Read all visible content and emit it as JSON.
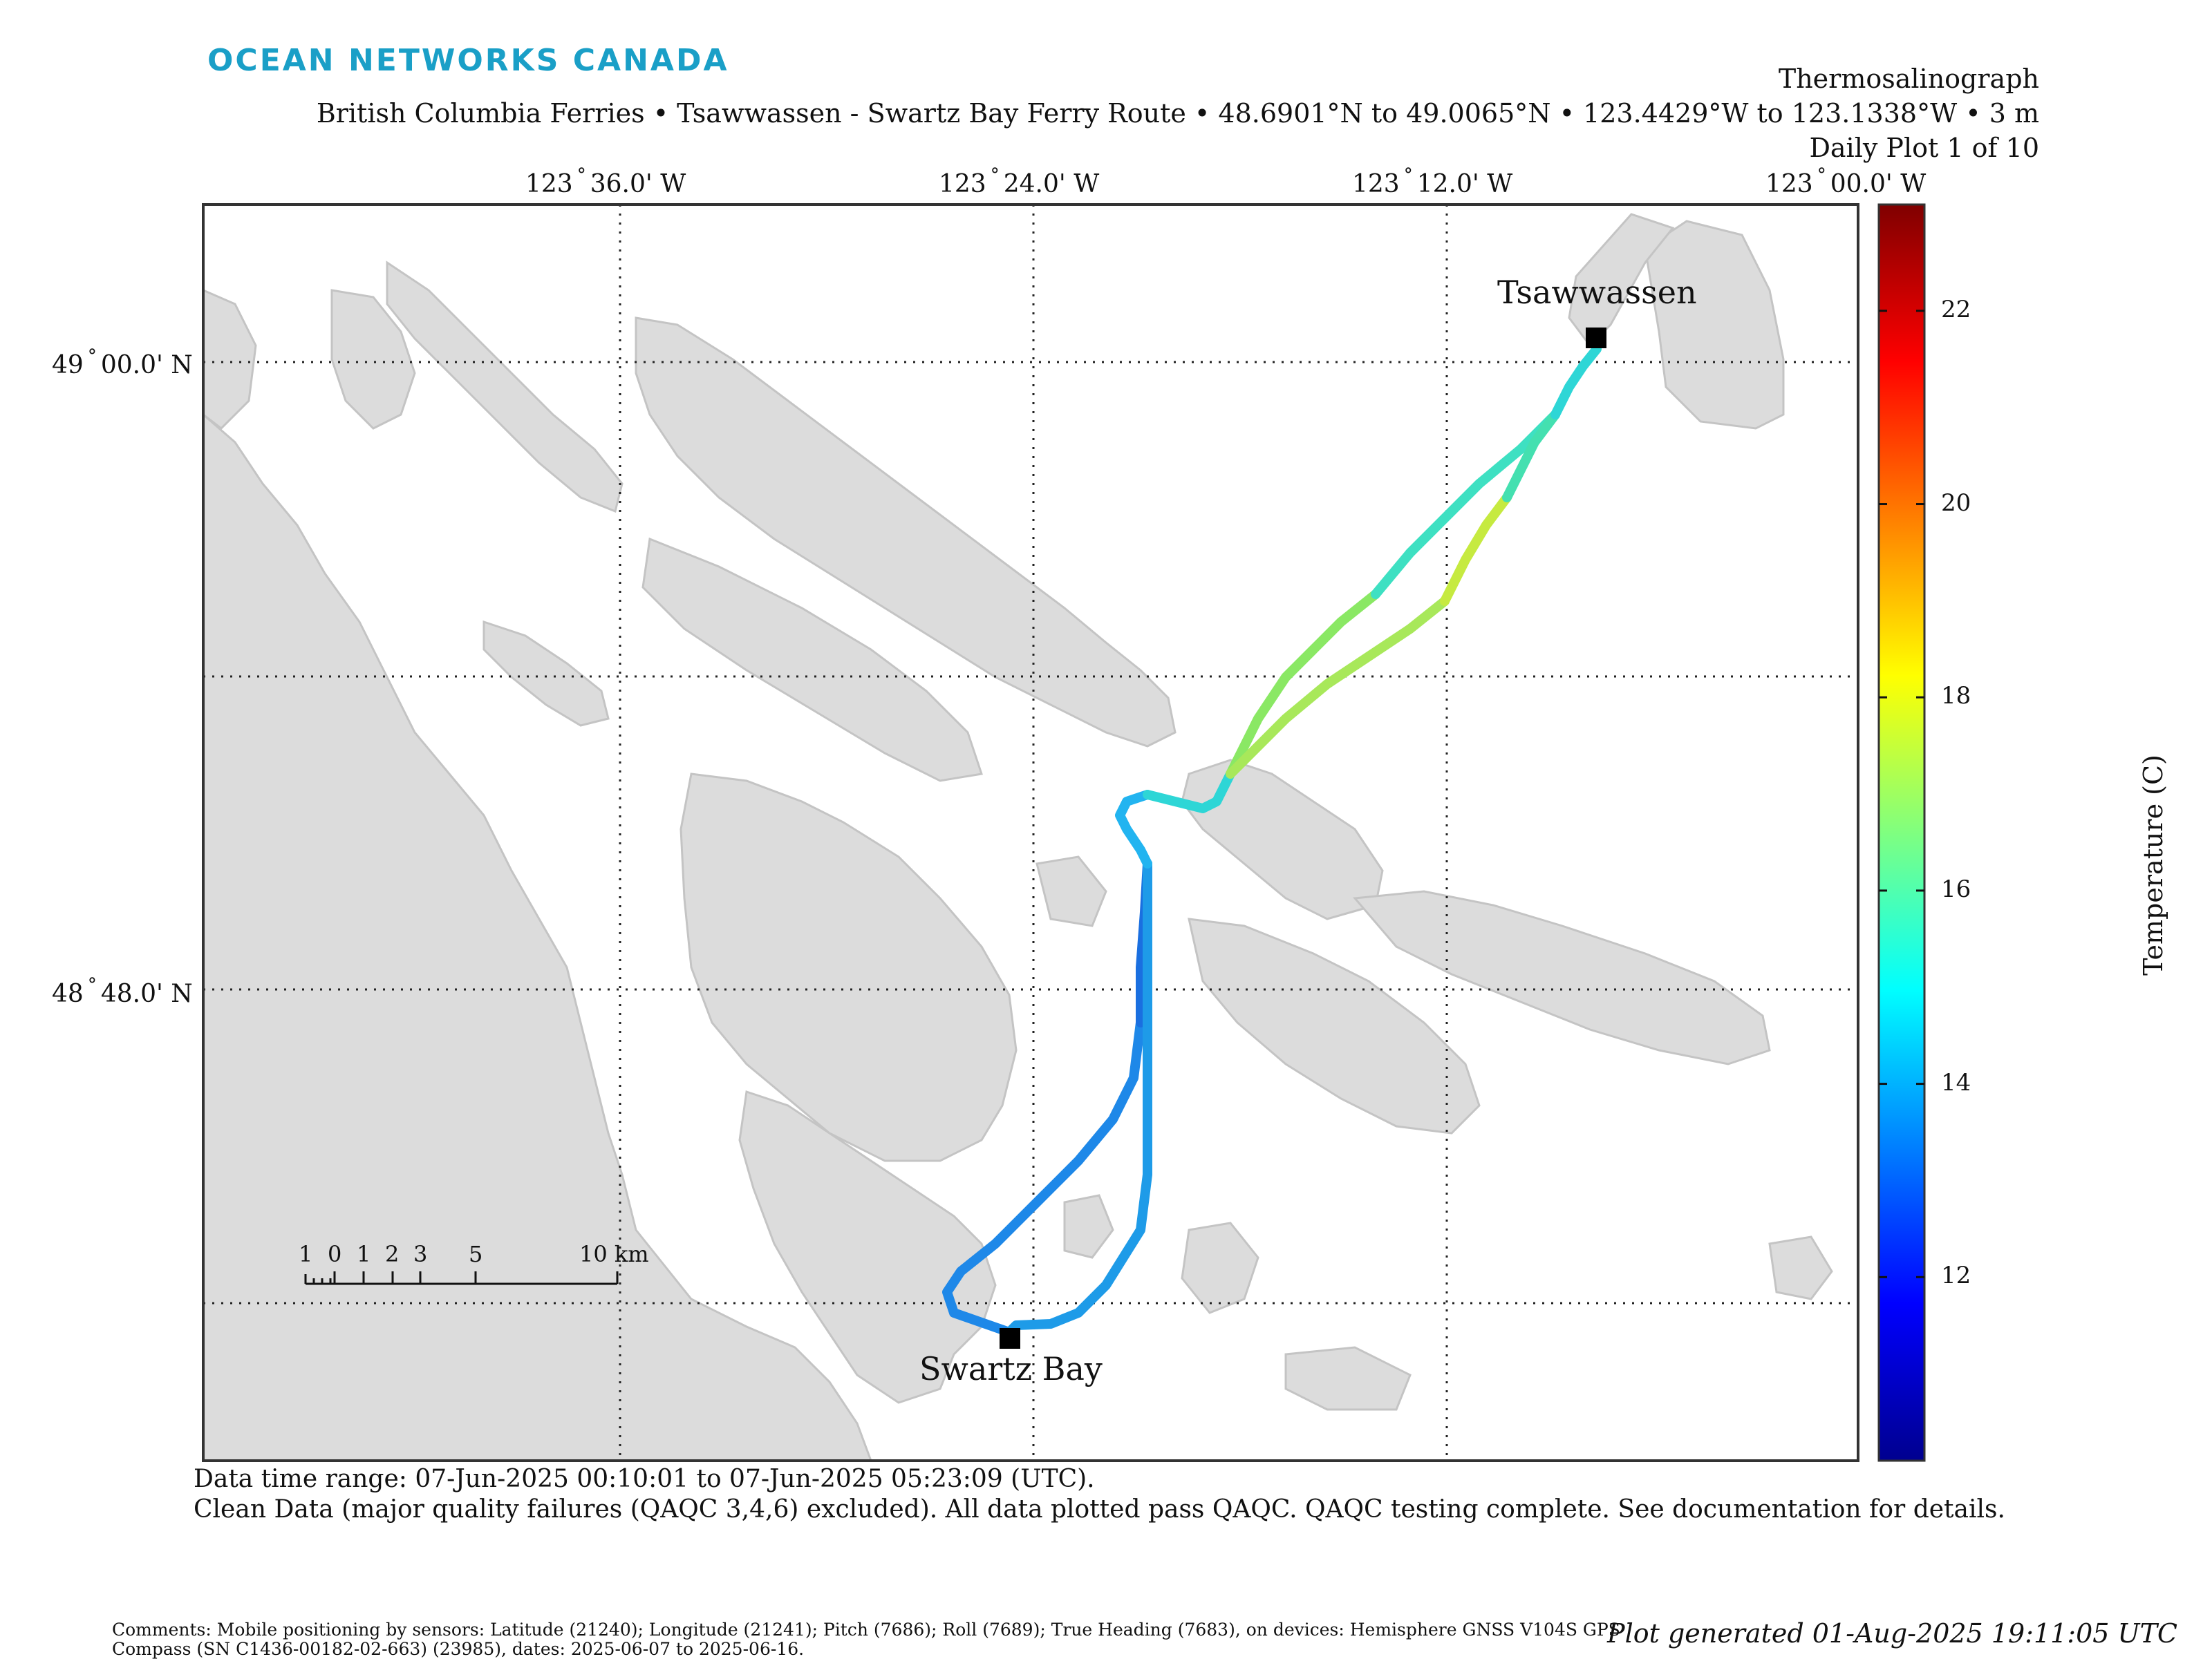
{
  "brand": "OCEAN NETWORKS CANADA",
  "title": {
    "line1": "Thermosalinograph",
    "line2": "British Columbia Ferries • Tsawwassen - Swartz Bay Ferry Route • 48.6901°N to 49.0065°N • 123.4429°W to 123.1338°W • 3 m",
    "line3": "Daily Plot 1 of 10"
  },
  "map": {
    "lon_ticks": [
      {
        "deg": "123",
        "min": "36.0' W"
      },
      {
        "deg": "123",
        "min": "24.0' W"
      },
      {
        "deg": "123",
        "min": "12.0' W"
      },
      {
        "deg": "123",
        "min": "00.0' W"
      }
    ],
    "lat_ticks": [
      {
        "deg": "49",
        "min": "00.0' N"
      },
      {
        "deg": "48",
        "min": "48.0' N"
      }
    ],
    "places": {
      "tsawwassen": "Tsawwassen",
      "swartz_bay": "Swartz Bay"
    },
    "scale_bar": {
      "labels": [
        "1",
        "0",
        "1",
        "2",
        "3",
        "5",
        "10 km"
      ]
    },
    "colors": {
      "land": "#dcdcdc",
      "land_edge": "#c4c4c4",
      "water": "#ffffff",
      "terminal": "#000000"
    }
  },
  "colorbar": {
    "label": "Temperature (C)",
    "ticks": [
      "22",
      "20",
      "18",
      "16",
      "14",
      "12"
    ],
    "min": 10.1,
    "max": 23.1,
    "colormap": "jet"
  },
  "footer": {
    "line1": "Data time range: 07-Jun-2025 00:10:01 to 07-Jun-2025 05:23:09 (UTC).",
    "line2": "Clean Data (major quality failures (QAQC 3,4,6) excluded). All data plotted pass QAQC. QAQC testing complete. See documentation for details.",
    "comment1": "Comments: Mobile positioning by sensors: Latitude (21240); Longitude (21241); Pitch (7686); Roll (7689); True Heading (7683), on devices: Hemisphere GNSS V104S GPS",
    "comment2": "Compass (SN C1436-00182-02-663) (23985), dates: 2025-06-07 to 2025-06-16.",
    "generated": "Plot generated 01-Aug-2025 19:11:05 UTC"
  }
}
